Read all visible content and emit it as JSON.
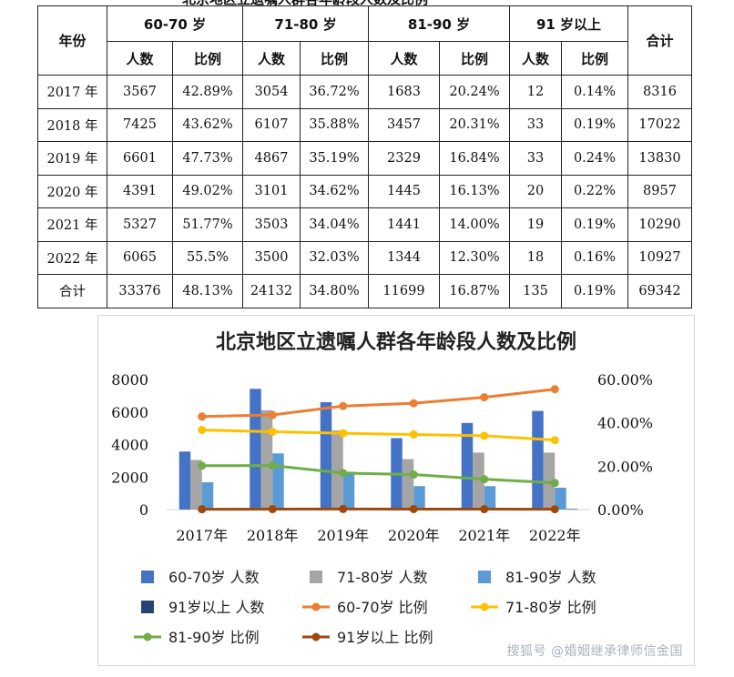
{
  "table": {
    "title_fragment": "北京地区立遗嘱人群各年龄段人数及比例",
    "year_header": "年份",
    "total_header": "合计",
    "groups": [
      "60-70 岁",
      "71-80 岁",
      "81-90 岁",
      "91 岁以上"
    ],
    "sub_headers": [
      "人数",
      "比例"
    ],
    "rows": [
      [
        "2017 年",
        "3567",
        "42.89%",
        "3054",
        "36.72%",
        "1683",
        "20.24%",
        "12",
        "0.14%",
        "8316"
      ],
      [
        "2018 年",
        "7425",
        "43.62%",
        "6107",
        "35.88%",
        "3457",
        "20.31%",
        "33",
        "0.19%",
        "17022"
      ],
      [
        "2019 年",
        "6601",
        "47.73%",
        "4867",
        "35.19%",
        "2329",
        "16.84%",
        "33",
        "0.24%",
        "13830"
      ],
      [
        "2020 年",
        "4391",
        "49.02%",
        "3101",
        "34.62%",
        "1445",
        "16.13%",
        "20",
        "0.22%",
        "8957"
      ],
      [
        "2021 年",
        "5327",
        "51.77%",
        "3503",
        "34.04%",
        "1441",
        "14.00%",
        "19",
        "0.19%",
        "10290"
      ],
      [
        "2022 年",
        "6065",
        "55.5%",
        "3500",
        "32.03%",
        "1344",
        "12.30%",
        "18",
        "0.16%",
        "10927"
      ],
      [
        "合计",
        "33376",
        "48.13%",
        "24132",
        "34.80%",
        "11699",
        "16.87%",
        "135",
        "0.19%",
        "69342"
      ]
    ]
  },
  "chart_data": {
    "type": "bar",
    "title": "北京地区立遗嘱人群各年龄段人数及比例",
    "categories": [
      "2017年",
      "2018年",
      "2019年",
      "2020年",
      "2021年",
      "2022年"
    ],
    "ylim": [
      0,
      8000
    ],
    "y_ticks": [
      "0",
      "2000",
      "4000",
      "6000",
      "8000"
    ],
    "y2lim": [
      0,
      0.6
    ],
    "y2_ticks": [
      "0.00%",
      "20.00%",
      "40.00%",
      "60.00%"
    ],
    "legend_position": "bottom",
    "series": [
      {
        "name": "60-70岁 人数",
        "type": "bar",
        "color": "#4472C4",
        "values": [
          3567,
          7425,
          6601,
          4391,
          5327,
          6065
        ]
      },
      {
        "name": "71-80岁 人数",
        "type": "bar",
        "color": "#A5A5A5",
        "values": [
          3054,
          6107,
          4867,
          3101,
          3503,
          3500
        ]
      },
      {
        "name": "81-90岁 人数",
        "type": "bar",
        "color": "#5B9BD5",
        "values": [
          1683,
          3457,
          2329,
          1445,
          1441,
          1344
        ]
      },
      {
        "name": "91岁以上 人数",
        "type": "bar",
        "color": "#264478",
        "values": [
          12,
          33,
          33,
          20,
          19,
          18
        ]
      },
      {
        "name": "60-70岁 比例",
        "type": "line",
        "axis": "right",
        "color": "#ED7D31",
        "values": [
          0.4289,
          0.4362,
          0.4773,
          0.4902,
          0.5177,
          0.555
        ]
      },
      {
        "name": "71-80岁 比例",
        "type": "line",
        "axis": "right",
        "color": "#FFC000",
        "values": [
          0.3672,
          0.3588,
          0.3519,
          0.3462,
          0.3404,
          0.3203
        ]
      },
      {
        "name": "81-90岁 比例",
        "type": "line",
        "axis": "right",
        "color": "#70AD47",
        "values": [
          0.2024,
          0.2031,
          0.1684,
          0.1613,
          0.14,
          0.123
        ]
      },
      {
        "name": "91岁以上 比例",
        "type": "line",
        "axis": "right",
        "color": "#9E480E",
        "values": [
          0.0014,
          0.0019,
          0.0024,
          0.0022,
          0.0019,
          0.0016
        ]
      }
    ]
  },
  "watermark": "搜狐号 @婚姻继承律师信金国"
}
